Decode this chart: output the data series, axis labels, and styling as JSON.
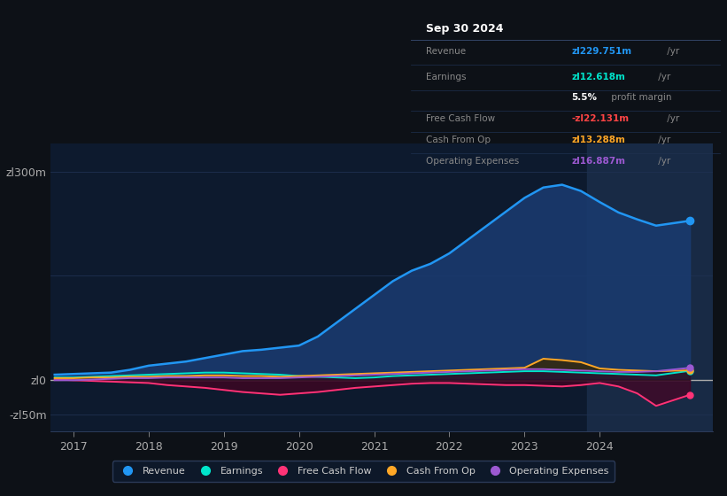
{
  "background_color": "#0d1117",
  "plot_bg_color": "#0d1a2e",
  "grid_color": "#1e3050",
  "ylabel_top": "zl300m",
  "ylabel_zero": "zl0",
  "ylabel_neg": "-zl50m",
  "ylim": [
    -75,
    340
  ],
  "xlim_start": 2016.7,
  "xlim_end": 2025.5,
  "xtick_years": [
    2017,
    2018,
    2019,
    2020,
    2021,
    2022,
    2023,
    2024
  ],
  "shade_start": 2023.83,
  "shade_end": 2025.5,
  "revenue_color": "#2196f3",
  "revenue_fill": "#1a3a6e",
  "earnings_color": "#00e5cc",
  "fcf_color": "#ff3377",
  "cashop_color": "#ffa726",
  "opex_color": "#9c59d1",
  "legend_bg": "#0d1a2e",
  "revenue_x": [
    2016.75,
    2017.0,
    2017.25,
    2017.5,
    2017.75,
    2018.0,
    2018.25,
    2018.5,
    2018.75,
    2019.0,
    2019.25,
    2019.5,
    2019.75,
    2020.0,
    2020.25,
    2020.5,
    2020.75,
    2021.0,
    2021.25,
    2021.5,
    2021.75,
    2022.0,
    2022.25,
    2022.5,
    2022.75,
    2023.0,
    2023.25,
    2023.5,
    2023.75,
    2024.0,
    2024.25,
    2024.5,
    2024.75,
    2025.2
  ],
  "revenue_y": [
    7,
    8,
    9,
    10,
    14,
    20,
    23,
    26,
    31,
    36,
    41,
    43,
    46,
    49,
    62,
    82,
    102,
    122,
    142,
    157,
    167,
    182,
    202,
    222,
    242,
    262,
    277,
    281,
    272,
    256,
    241,
    231,
    222,
    229
  ],
  "earnings_x": [
    2016.75,
    2017.0,
    2017.25,
    2017.5,
    2017.75,
    2018.0,
    2018.25,
    2018.5,
    2018.75,
    2019.0,
    2019.25,
    2019.5,
    2019.75,
    2020.0,
    2020.25,
    2020.5,
    2020.75,
    2021.0,
    2021.25,
    2021.5,
    2021.75,
    2022.0,
    2022.25,
    2022.5,
    2022.75,
    2023.0,
    2023.25,
    2023.5,
    2023.75,
    2024.0,
    2024.25,
    2024.5,
    2024.75,
    2025.2
  ],
  "earnings_y": [
    3,
    3,
    4,
    5,
    6,
    7,
    8,
    9,
    10,
    10,
    9,
    8,
    7,
    5,
    4,
    3,
    2,
    3,
    5,
    6,
    7,
    8,
    9,
    10,
    11,
    12,
    12,
    11,
    10,
    9,
    8,
    7,
    6,
    12.6
  ],
  "fcf_x": [
    2016.75,
    2017.0,
    2017.25,
    2017.5,
    2017.75,
    2018.0,
    2018.25,
    2018.5,
    2018.75,
    2019.0,
    2019.25,
    2019.5,
    2019.75,
    2020.0,
    2020.25,
    2020.5,
    2020.75,
    2021.0,
    2021.25,
    2021.5,
    2021.75,
    2022.0,
    2022.25,
    2022.5,
    2022.75,
    2023.0,
    2023.25,
    2023.5,
    2023.75,
    2024.0,
    2024.25,
    2024.5,
    2024.75,
    2025.2
  ],
  "fcf_y": [
    0,
    -1,
    -2,
    -3,
    -4,
    -5,
    -8,
    -10,
    -12,
    -15,
    -18,
    -20,
    -22,
    -20,
    -18,
    -15,
    -12,
    -10,
    -8,
    -6,
    -5,
    -5,
    -6,
    -7,
    -8,
    -8,
    -9,
    -10,
    -8,
    -5,
    -10,
    -20,
    -38,
    -22
  ],
  "cashop_x": [
    2016.75,
    2017.0,
    2017.25,
    2017.5,
    2017.75,
    2018.0,
    2018.25,
    2018.5,
    2018.75,
    2019.0,
    2019.25,
    2019.5,
    2019.75,
    2020.0,
    2020.25,
    2020.5,
    2020.75,
    2021.0,
    2021.25,
    2021.5,
    2021.75,
    2022.0,
    2022.25,
    2022.5,
    2022.75,
    2023.0,
    2023.25,
    2023.5,
    2023.75,
    2024.0,
    2024.25,
    2024.5,
    2024.75,
    2025.2
  ],
  "cashop_y": [
    2,
    2,
    3,
    3,
    4,
    4,
    5,
    5,
    6,
    6,
    5,
    5,
    4,
    5,
    6,
    7,
    8,
    9,
    10,
    11,
    12,
    13,
    14,
    15,
    16,
    17,
    30,
    28,
    25,
    16,
    14,
    13,
    12,
    13.3
  ],
  "opex_x": [
    2016.75,
    2017.0,
    2017.25,
    2017.5,
    2017.75,
    2018.0,
    2018.25,
    2018.5,
    2018.75,
    2019.0,
    2019.25,
    2019.5,
    2019.75,
    2020.0,
    2020.25,
    2020.5,
    2020.75,
    2021.0,
    2021.25,
    2021.5,
    2021.75,
    2022.0,
    2022.25,
    2022.5,
    2022.75,
    2023.0,
    2023.25,
    2023.5,
    2023.75,
    2024.0,
    2024.25,
    2024.5,
    2024.75,
    2025.2
  ],
  "opex_y": [
    -1,
    -1,
    0,
    1,
    2,
    2,
    3,
    3,
    3,
    3,
    2,
    2,
    2,
    3,
    4,
    5,
    6,
    7,
    8,
    9,
    10,
    11,
    12,
    13,
    14,
    15,
    15,
    14,
    13,
    12,
    11,
    11,
    12,
    16.9
  ],
  "info_rows": [
    {
      "label": "Revenue",
      "value": "zl229.751m",
      "suffix": " /yr",
      "color": "#2196f3",
      "bold_val": true
    },
    {
      "label": "Earnings",
      "value": "zl12.618m",
      "suffix": " /yr",
      "color": "#00e5cc",
      "bold_val": true
    },
    {
      "label": "",
      "value": "5.5%",
      "suffix": " profit margin",
      "color": "white",
      "bold_val": true
    },
    {
      "label": "Free Cash Flow",
      "value": "-zl22.131m",
      "suffix": " /yr",
      "color": "#ff4444",
      "bold_val": true
    },
    {
      "label": "Cash From Op",
      "value": "zl13.288m",
      "suffix": " /yr",
      "color": "#ffa726",
      "bold_val": true
    },
    {
      "label": "Operating Expenses",
      "value": "zl16.887m",
      "suffix": " /yr",
      "color": "#9c59d1",
      "bold_val": true
    }
  ],
  "legend_items": [
    {
      "label": "Revenue",
      "color": "#2196f3"
    },
    {
      "label": "Earnings",
      "color": "#00e5cc"
    },
    {
      "label": "Free Cash Flow",
      "color": "#ff3377"
    },
    {
      "label": "Cash From Op",
      "color": "#ffa726"
    },
    {
      "label": "Operating Expenses",
      "color": "#9c59d1"
    }
  ]
}
